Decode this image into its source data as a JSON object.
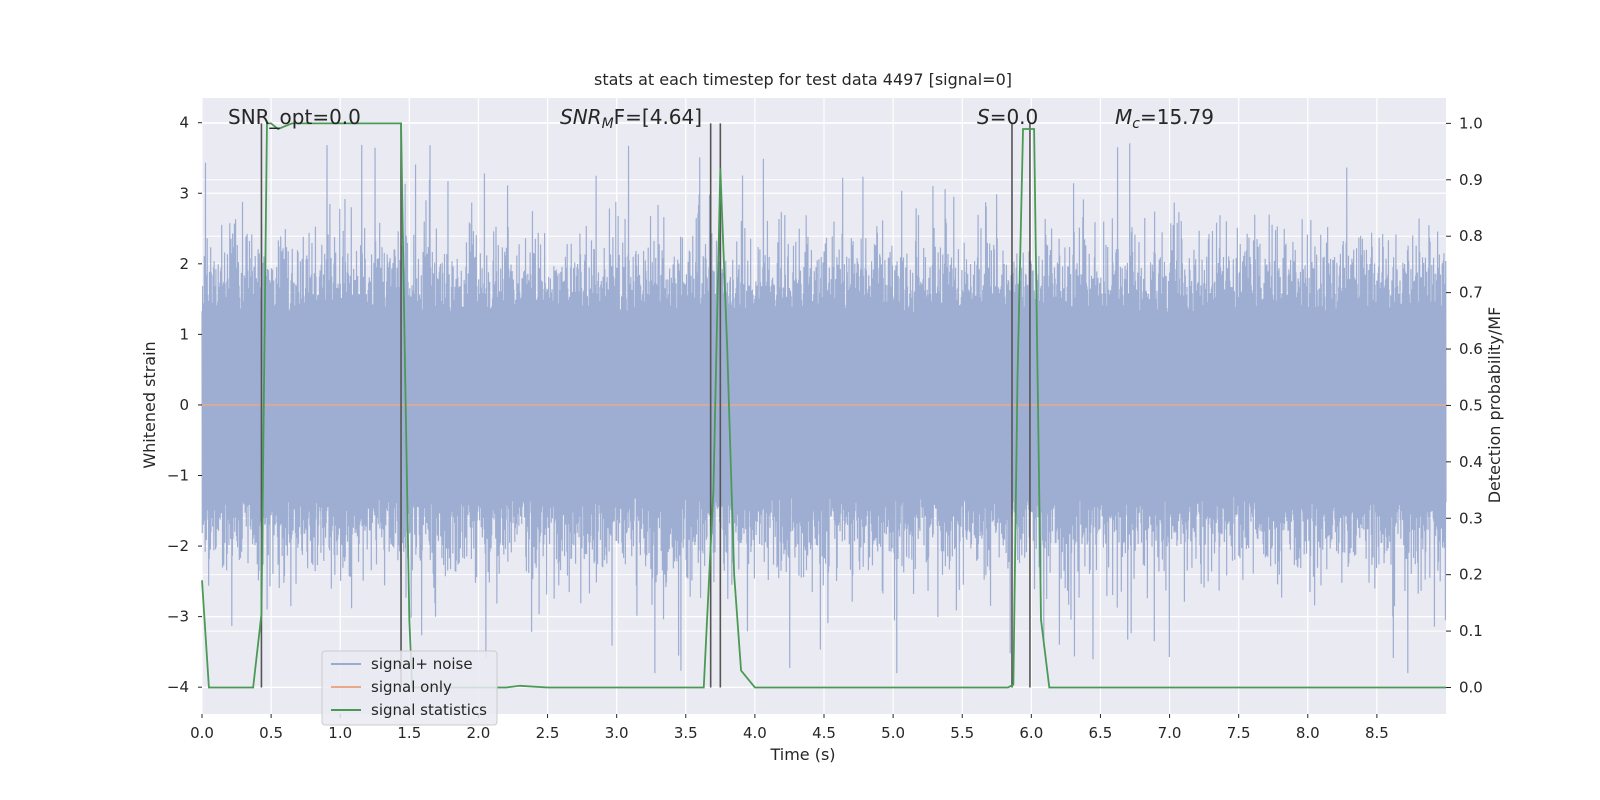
{
  "chart_data": {
    "type": "line",
    "title": "stats at each timestep for test data 4497 [signal=0]",
    "xlabel": "Time (s)",
    "ylabel_left": "Whitened strain",
    "ylabel_right": "Detection probability/MF",
    "xlim": [
      0.0,
      9.0
    ],
    "ylim_left": [
      -4.38,
      4.35
    ],
    "ylim_right": [
      -0.047,
      1.045
    ],
    "x_ticks": [
      "0.0",
      "0.5",
      "1.0",
      "1.5",
      "2.0",
      "2.5",
      "3.0",
      "3.5",
      "4.0",
      "4.5",
      "5.0",
      "5.5",
      "6.0",
      "6.5",
      "7.0",
      "7.5",
      "8.0",
      "8.5"
    ],
    "y_ticks_left": [
      "4",
      "3",
      "2",
      "1",
      "0",
      "−1",
      "−2",
      "−3",
      "−4"
    ],
    "y_ticks_left_values": [
      4,
      3,
      2,
      1,
      0,
      -1,
      -2,
      -3,
      -4
    ],
    "y_ticks_right": [
      "1.0",
      "0.9",
      "0.8",
      "0.7",
      "0.6",
      "0.5",
      "0.4",
      "0.3",
      "0.2",
      "0.1",
      "0.0"
    ],
    "y_ticks_right_values": [
      1.0,
      0.9,
      0.8,
      0.7,
      0.6,
      0.5,
      0.4,
      0.3,
      0.2,
      0.1,
      0.0
    ],
    "grid": true,
    "legend_position": "lower-left",
    "annotations": {
      "snr_opt": "SNR_opt=0.0",
      "snr_mf_main": "SNR",
      "snr_mf_sub": "M",
      "snr_mf_rest": "F=[4.64]",
      "s_italic": "S",
      "s_rest": "=0.0",
      "mc_main": "M",
      "mc_sub": "c",
      "mc_rest": "=15.79"
    },
    "series": [
      {
        "name": "signal+ noise",
        "color": "#9aabd0",
        "kind": "noise",
        "amplitude_envelope": 2.0,
        "peak_max": 4.0,
        "peak_min": -3.8
      },
      {
        "name": "signal only",
        "color": "#e8a88a",
        "kind": "line",
        "x": [
          0.0,
          9.0
        ],
        "y": [
          0.0,
          0.0
        ]
      },
      {
        "name": "signal statistics",
        "color": "#4a9a55",
        "axis": "right",
        "kind": "line",
        "x": [
          0.0,
          0.05,
          0.1,
          0.2,
          0.3,
          0.37,
          0.43,
          0.47,
          0.5,
          0.55,
          0.65,
          0.8,
          0.95,
          1.1,
          1.3,
          1.44,
          1.47,
          1.5,
          1.52,
          1.6,
          2.0,
          2.2,
          2.3,
          2.5,
          3.0,
          3.5,
          3.63,
          3.7,
          3.75,
          3.8,
          3.85,
          3.9,
          4.0,
          4.5,
          5.0,
          5.5,
          5.83,
          5.87,
          5.9,
          5.94,
          5.98,
          6.02,
          6.07,
          6.13,
          6.5,
          7.0,
          8.0,
          9.0
        ],
        "y": [
          0.19,
          0.0,
          0.0,
          0.0,
          0.0,
          0.0,
          0.13,
          1.0,
          1.0,
          0.99,
          1.0,
          1.0,
          1.0,
          1.0,
          1.0,
          1.0,
          0.55,
          0.12,
          0.0,
          0.0,
          0.0,
          0.0,
          0.003,
          0.0,
          0.0,
          0.0,
          0.0,
          0.35,
          0.92,
          0.6,
          0.2,
          0.03,
          0.0,
          0.0,
          0.0,
          0.0,
          0.0,
          0.005,
          0.55,
          0.99,
          0.99,
          0.99,
          0.12,
          0.0,
          0.0,
          0.0,
          0.0,
          0.0
        ]
      }
    ],
    "vertical_markers_x": [
      0.43,
      1.44,
      3.68,
      3.75,
      5.86,
      5.99
    ]
  }
}
